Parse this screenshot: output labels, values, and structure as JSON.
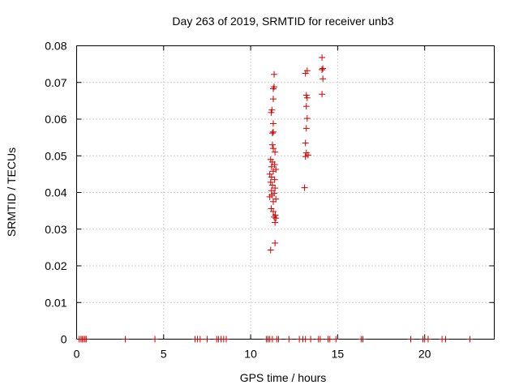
{
  "chart_data": {
    "type": "scatter",
    "title": "Day 263 of 2019, SRMTID for receiver unb3",
    "xlabel": "GPS time / hours",
    "ylabel": "SRMTID / TECUs",
    "xlim": [
      0,
      24
    ],
    "ylim": [
      0,
      0.08
    ],
    "grid": true,
    "x_ticks": [
      0,
      5,
      10,
      15,
      20
    ],
    "x_tick_labels": [
      "0",
      "5",
      "10",
      "15",
      "20"
    ],
    "y_ticks": [
      0,
      0.01,
      0.02,
      0.03,
      0.04,
      0.05,
      0.06,
      0.07,
      0.08
    ],
    "y_tick_labels": [
      "0",
      "0.01",
      "0.02",
      "0.03",
      "0.04",
      "0.05",
      "0.06",
      "0.07",
      "0.08"
    ],
    "marker": "+",
    "marker_color": "#cc0000",
    "series": [
      {
        "name": "SRMTID",
        "points": [
          [
            0.15,
            0
          ],
          [
            0.25,
            0
          ],
          [
            0.32,
            0
          ],
          [
            0.4,
            0
          ],
          [
            0.48,
            0
          ],
          [
            0.55,
            0
          ],
          [
            2.8,
            0
          ],
          [
            4.5,
            0
          ],
          [
            6.8,
            0
          ],
          [
            6.95,
            0
          ],
          [
            7.1,
            0
          ],
          [
            7.5,
            0
          ],
          [
            8.05,
            0
          ],
          [
            8.15,
            0
          ],
          [
            8.3,
            0
          ],
          [
            8.45,
            0
          ],
          [
            8.6,
            0
          ],
          [
            10.9,
            0
          ],
          [
            11.0,
            0
          ],
          [
            11.1,
            0
          ],
          [
            11.25,
            0
          ],
          [
            11.5,
            0
          ],
          [
            11.6,
            0
          ],
          [
            12.2,
            0
          ],
          [
            12.8,
            0
          ],
          [
            13.0,
            0
          ],
          [
            13.15,
            0
          ],
          [
            13.45,
            0
          ],
          [
            13.9,
            0
          ],
          [
            14.0,
            0
          ],
          [
            14.45,
            0
          ],
          [
            14.55,
            0
          ],
          [
            14.9,
            0
          ],
          [
            16.35,
            0
          ],
          [
            16.45,
            0
          ],
          [
            19.2,
            0
          ],
          [
            19.9,
            0
          ],
          [
            20.0,
            0
          ],
          [
            20.2,
            0
          ],
          [
            21.0,
            0
          ],
          [
            21.2,
            0
          ],
          [
            22.6,
            0
          ],
          [
            11.15,
            0.0243
          ],
          [
            11.4,
            0.0262
          ],
          [
            11.4,
            0.0318
          ],
          [
            11.45,
            0.033
          ],
          [
            11.35,
            0.0333
          ],
          [
            11.42,
            0.0338
          ],
          [
            11.3,
            0.0348
          ],
          [
            11.18,
            0.0356
          ],
          [
            11.3,
            0.0375
          ],
          [
            11.45,
            0.0382
          ],
          [
            11.1,
            0.0388
          ],
          [
            11.22,
            0.0393
          ],
          [
            11.35,
            0.0398
          ],
          [
            11.2,
            0.0405
          ],
          [
            11.4,
            0.0412
          ],
          [
            11.25,
            0.042
          ],
          [
            11.15,
            0.0428
          ],
          [
            11.38,
            0.0435
          ],
          [
            11.2,
            0.0442
          ],
          [
            11.1,
            0.045
          ],
          [
            11.3,
            0.0458
          ],
          [
            11.45,
            0.0463
          ],
          [
            11.2,
            0.047
          ],
          [
            11.38,
            0.0476
          ],
          [
            11.25,
            0.0483
          ],
          [
            11.15,
            0.049
          ],
          [
            11.4,
            0.051
          ],
          [
            11.3,
            0.052
          ],
          [
            11.25,
            0.053
          ],
          [
            11.25,
            0.0562
          ],
          [
            11.3,
            0.0565
          ],
          [
            11.3,
            0.0588
          ],
          [
            11.18,
            0.0618
          ],
          [
            11.22,
            0.0625
          ],
          [
            11.3,
            0.0655
          ],
          [
            11.3,
            0.0683
          ],
          [
            11.35,
            0.0688
          ],
          [
            11.35,
            0.0722
          ],
          [
            13.1,
            0.0413
          ],
          [
            13.15,
            0.0498
          ],
          [
            13.3,
            0.0502
          ],
          [
            13.2,
            0.0508
          ],
          [
            13.15,
            0.0535
          ],
          [
            13.2,
            0.0575
          ],
          [
            13.25,
            0.0602
          ],
          [
            13.2,
            0.0635
          ],
          [
            13.25,
            0.0658
          ],
          [
            13.2,
            0.0665
          ],
          [
            13.15,
            0.0725
          ],
          [
            13.25,
            0.0732
          ],
          [
            14.1,
            0.0668
          ],
          [
            14.15,
            0.071
          ],
          [
            14.1,
            0.0735
          ],
          [
            14.15,
            0.0738
          ],
          [
            14.1,
            0.0768
          ]
        ]
      }
    ]
  }
}
